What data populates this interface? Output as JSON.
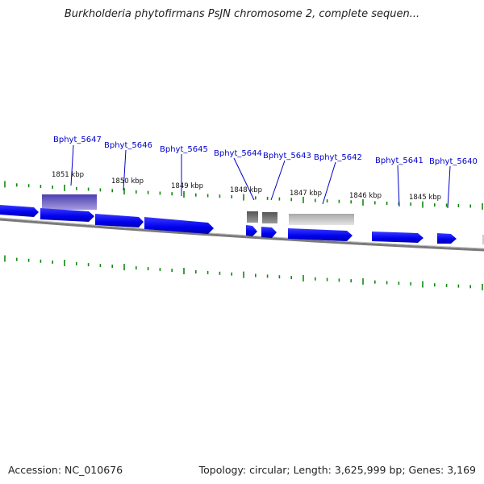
{
  "title": "Burkholderia phytofirmans PsJN chromosome 2, complete sequen...",
  "footer": {
    "accession": "Accession: NC_010676",
    "summary": "Topology: circular; Length: 3,625,999 bp; Genes: 3,169"
  },
  "colors": {
    "forward_gene": "#0000ee",
    "pseudo_gene": "#6f66c8",
    "rna_feature": "#666666",
    "other_feature": "#bbbbbb",
    "backbone": "#7a7a7a",
    "tick": "#118811",
    "label": "#0000cc"
  },
  "scale_labels": [
    "1851 kbp",
    "1850 kbp",
    "1849 kbp",
    "1848 kbp",
    "1847 kbp",
    "1846 kbp",
    "1845 kbp"
  ],
  "gene_labels": [
    "Bphyt_5647",
    "Bphyt_5646",
    "Bphyt_5645",
    "Bphyt_5644",
    "Bphyt_5643",
    "Bphyt_5642",
    "Bphyt_5641",
    "Bphyt_5640"
  ]
}
